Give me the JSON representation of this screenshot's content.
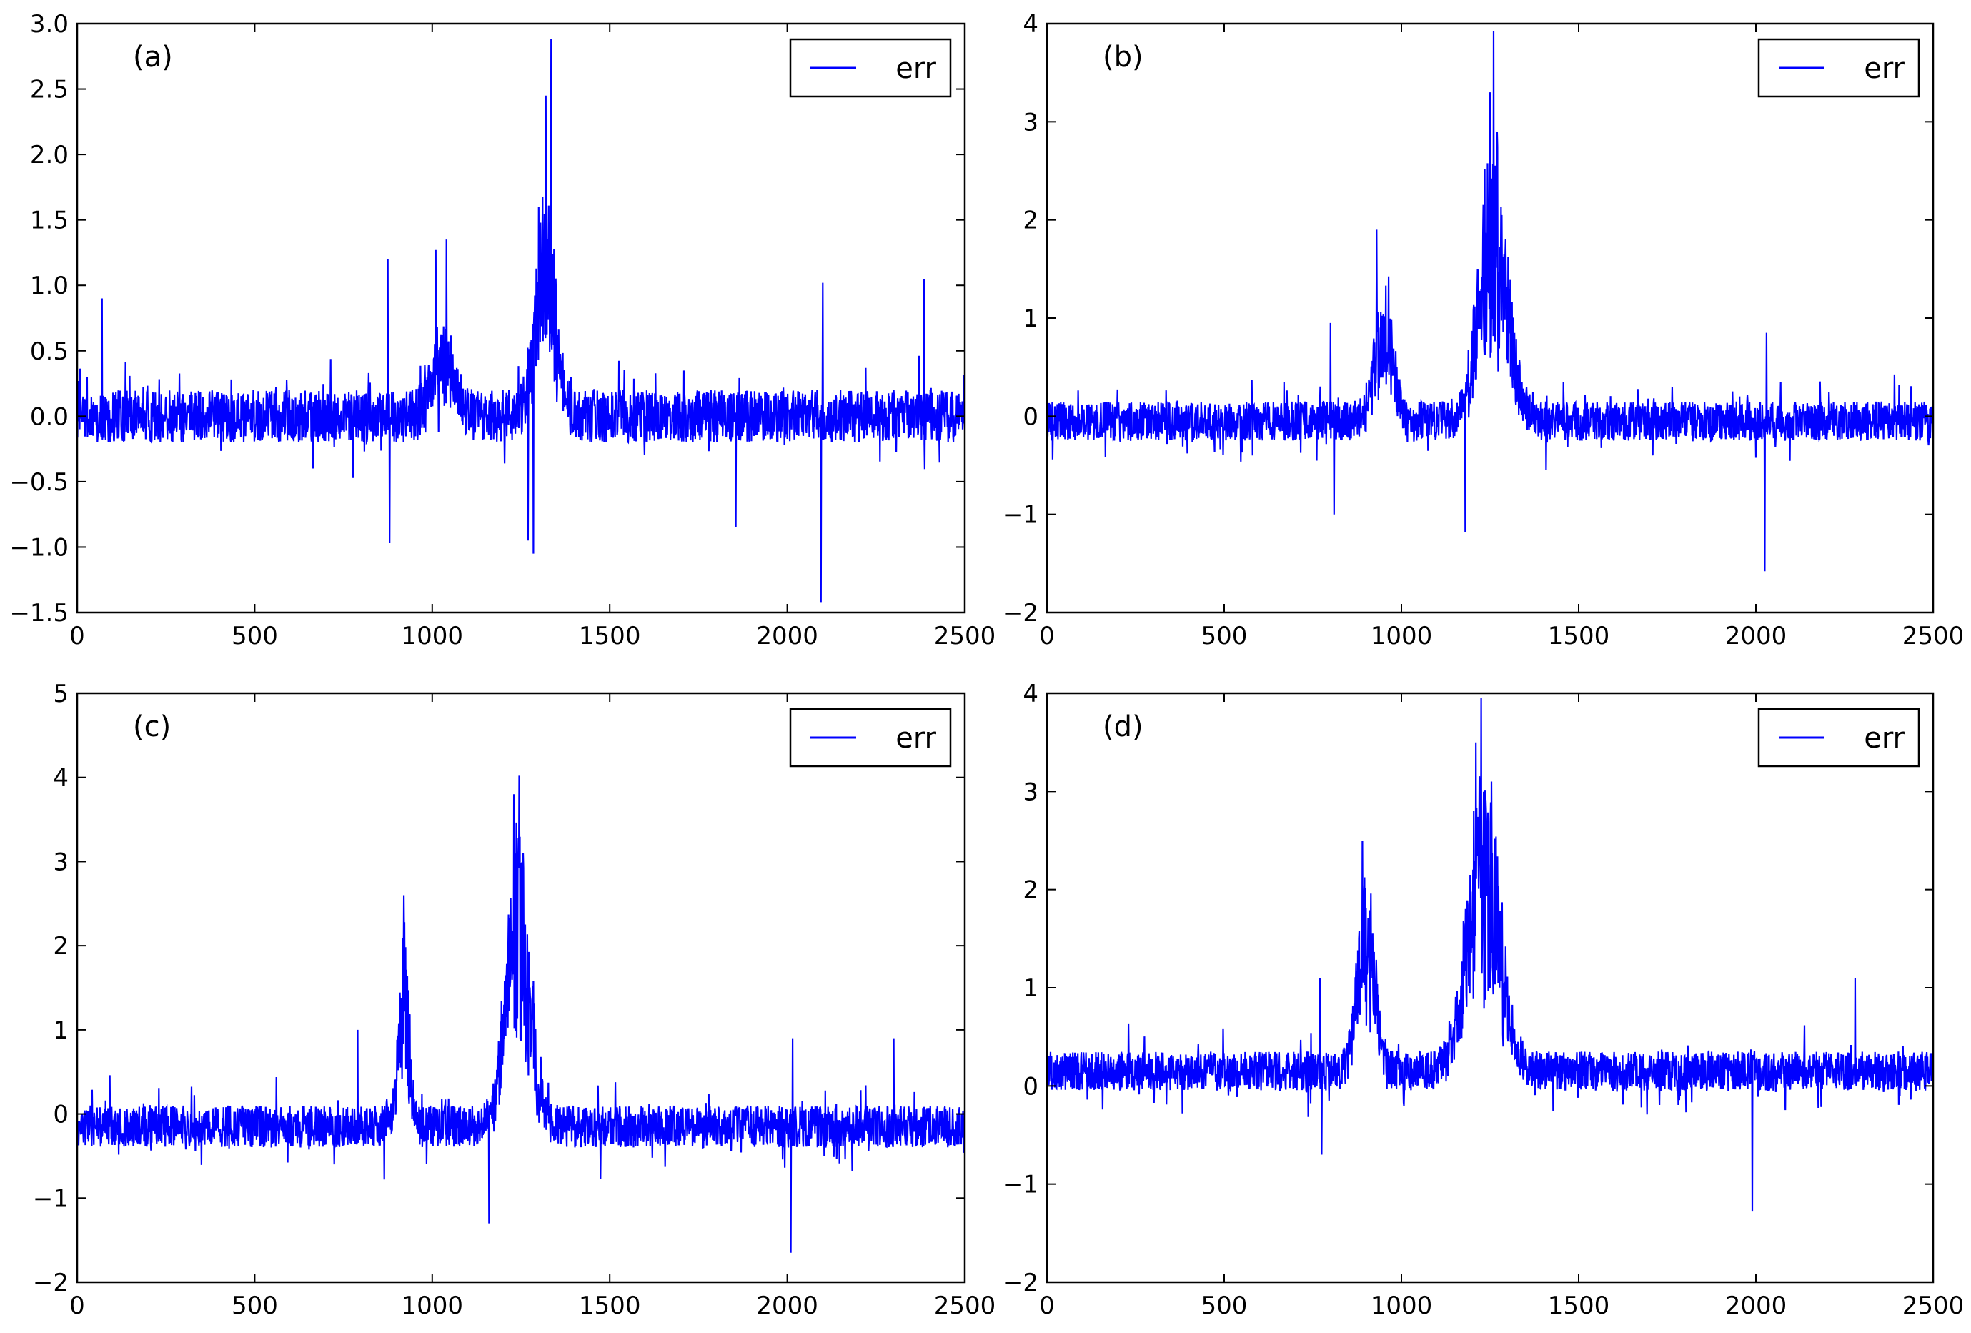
{
  "line_color": "#0000ff",
  "chart_data": [
    {
      "type": "line",
      "panel_label": "(a)",
      "legend": "err",
      "legend_position": "top-right",
      "grid": false,
      "xlim": [
        0,
        2500
      ],
      "ylim": [
        -1.5,
        3.0
      ],
      "xticks": [
        0,
        500,
        1000,
        1500,
        2000,
        2500
      ],
      "xtick_labels": [
        "0",
        "500",
        "1000",
        "1500",
        "2000",
        "2500"
      ],
      "yticks": [
        -1.5,
        -1.0,
        -0.5,
        0.0,
        0.5,
        1.0,
        1.5,
        2.0,
        2.5,
        3.0
      ],
      "ytick_labels": [
        "−1.5",
        "−1.0",
        "−0.5",
        "0.0",
        "0.5",
        "1.0",
        "1.5",
        "2.0",
        "2.5",
        "3.0"
      ],
      "baseline": 0.0,
      "noise": 0.2,
      "bumps": [
        {
          "x": 1030,
          "height": 0.45,
          "width": 30
        },
        {
          "x": 1320,
          "height": 1.1,
          "width": 30
        }
      ],
      "spikes": [
        {
          "x": 70,
          "y": 0.9
        },
        {
          "x": 875,
          "y": 1.2
        },
        {
          "x": 880,
          "y": -0.97
        },
        {
          "x": 1010,
          "y": 1.27
        },
        {
          "x": 1040,
          "y": 1.35
        },
        {
          "x": 1270,
          "y": -0.95
        },
        {
          "x": 1285,
          "y": -1.05
        },
        {
          "x": 1300,
          "y": 1.6
        },
        {
          "x": 1320,
          "y": 2.45
        },
        {
          "x": 1335,
          "y": 2.88
        },
        {
          "x": 1855,
          "y": -0.85
        },
        {
          "x": 2095,
          "y": -1.42
        },
        {
          "x": 2100,
          "y": 1.02
        },
        {
          "x": 2385,
          "y": 1.05
        }
      ]
    },
    {
      "type": "line",
      "panel_label": "(b)",
      "legend": "err",
      "legend_position": "top-right",
      "grid": false,
      "xlim": [
        0,
        2500
      ],
      "ylim": [
        -2,
        4
      ],
      "xticks": [
        0,
        500,
        1000,
        1500,
        2000,
        2500
      ],
      "xtick_labels": [
        "0",
        "500",
        "1000",
        "1500",
        "2000",
        "2500"
      ],
      "yticks": [
        -2,
        -1,
        0,
        1,
        2,
        3,
        4
      ],
      "ytick_labels": [
        "−2",
        "−1",
        "0",
        "1",
        "2",
        "3",
        "4"
      ],
      "baseline": -0.05,
      "noise": 0.2,
      "bumps": [
        {
          "x": 950,
          "height": 1.0,
          "width": 25
        },
        {
          "x": 1260,
          "height": 1.8,
          "width": 40
        }
      ],
      "spikes": [
        {
          "x": 800,
          "y": 0.95
        },
        {
          "x": 810,
          "y": -1.0
        },
        {
          "x": 930,
          "y": 1.9
        },
        {
          "x": 1180,
          "y": -1.18
        },
        {
          "x": 1250,
          "y": 3.3
        },
        {
          "x": 1260,
          "y": 3.92
        },
        {
          "x": 1270,
          "y": 2.9
        },
        {
          "x": 2025,
          "y": -1.58
        },
        {
          "x": 2030,
          "y": 0.85
        }
      ]
    },
    {
      "type": "line",
      "panel_label": "(c)",
      "legend": "err",
      "legend_position": "top-right",
      "grid": false,
      "xlim": [
        0,
        2500
      ],
      "ylim": [
        -2,
        5
      ],
      "xticks": [
        0,
        500,
        1000,
        1500,
        2000,
        2500
      ],
      "xtick_labels": [
        "0",
        "500",
        "1000",
        "1500",
        "2000",
        "2500"
      ],
      "yticks": [
        -2,
        -1,
        0,
        1,
        2,
        3,
        4,
        5
      ],
      "ytick_labels": [
        "−2",
        "−1",
        "0",
        "1",
        "2",
        "3",
        "4",
        "5"
      ],
      "baseline": -0.15,
      "noise": 0.25,
      "bumps": [
        {
          "x": 920,
          "height": 1.5,
          "width": 15
        },
        {
          "x": 1240,
          "height": 2.2,
          "width": 35
        }
      ],
      "spikes": [
        {
          "x": 790,
          "y": 1.0
        },
        {
          "x": 920,
          "y": 2.6
        },
        {
          "x": 1160,
          "y": -1.3
        },
        {
          "x": 1230,
          "y": 3.8
        },
        {
          "x": 1245,
          "y": 4.02
        },
        {
          "x": 2010,
          "y": -1.65
        },
        {
          "x": 2015,
          "y": 0.9
        },
        {
          "x": 2300,
          "y": 0.9
        }
      ]
    },
    {
      "type": "line",
      "panel_label": "(d)",
      "legend": "err",
      "legend_position": "top-right",
      "grid": false,
      "xlim": [
        0,
        2500
      ],
      "ylim": [
        -2,
        4
      ],
      "xticks": [
        0,
        500,
        1000,
        1500,
        2000,
        2500
      ],
      "xtick_labels": [
        "0",
        "500",
        "1000",
        "1500",
        "2000",
        "2500"
      ],
      "yticks": [
        -2,
        -1,
        0,
        1,
        2,
        3,
        4
      ],
      "ytick_labels": [
        "−2",
        "−1",
        "0",
        "1",
        "2",
        "3",
        "4"
      ],
      "baseline": 0.15,
      "noise": 0.2,
      "bumps": [
        {
          "x": 900,
          "height": 1.3,
          "width": 25
        },
        {
          "x": 1230,
          "height": 2.0,
          "width": 45
        }
      ],
      "spikes": [
        {
          "x": 770,
          "y": 1.1
        },
        {
          "x": 775,
          "y": -0.7
        },
        {
          "x": 890,
          "y": 2.5
        },
        {
          "x": 1210,
          "y": 3.5
        },
        {
          "x": 1225,
          "y": 3.95
        },
        {
          "x": 1990,
          "y": -1.28
        },
        {
          "x": 2280,
          "y": 1.1
        }
      ]
    }
  ]
}
